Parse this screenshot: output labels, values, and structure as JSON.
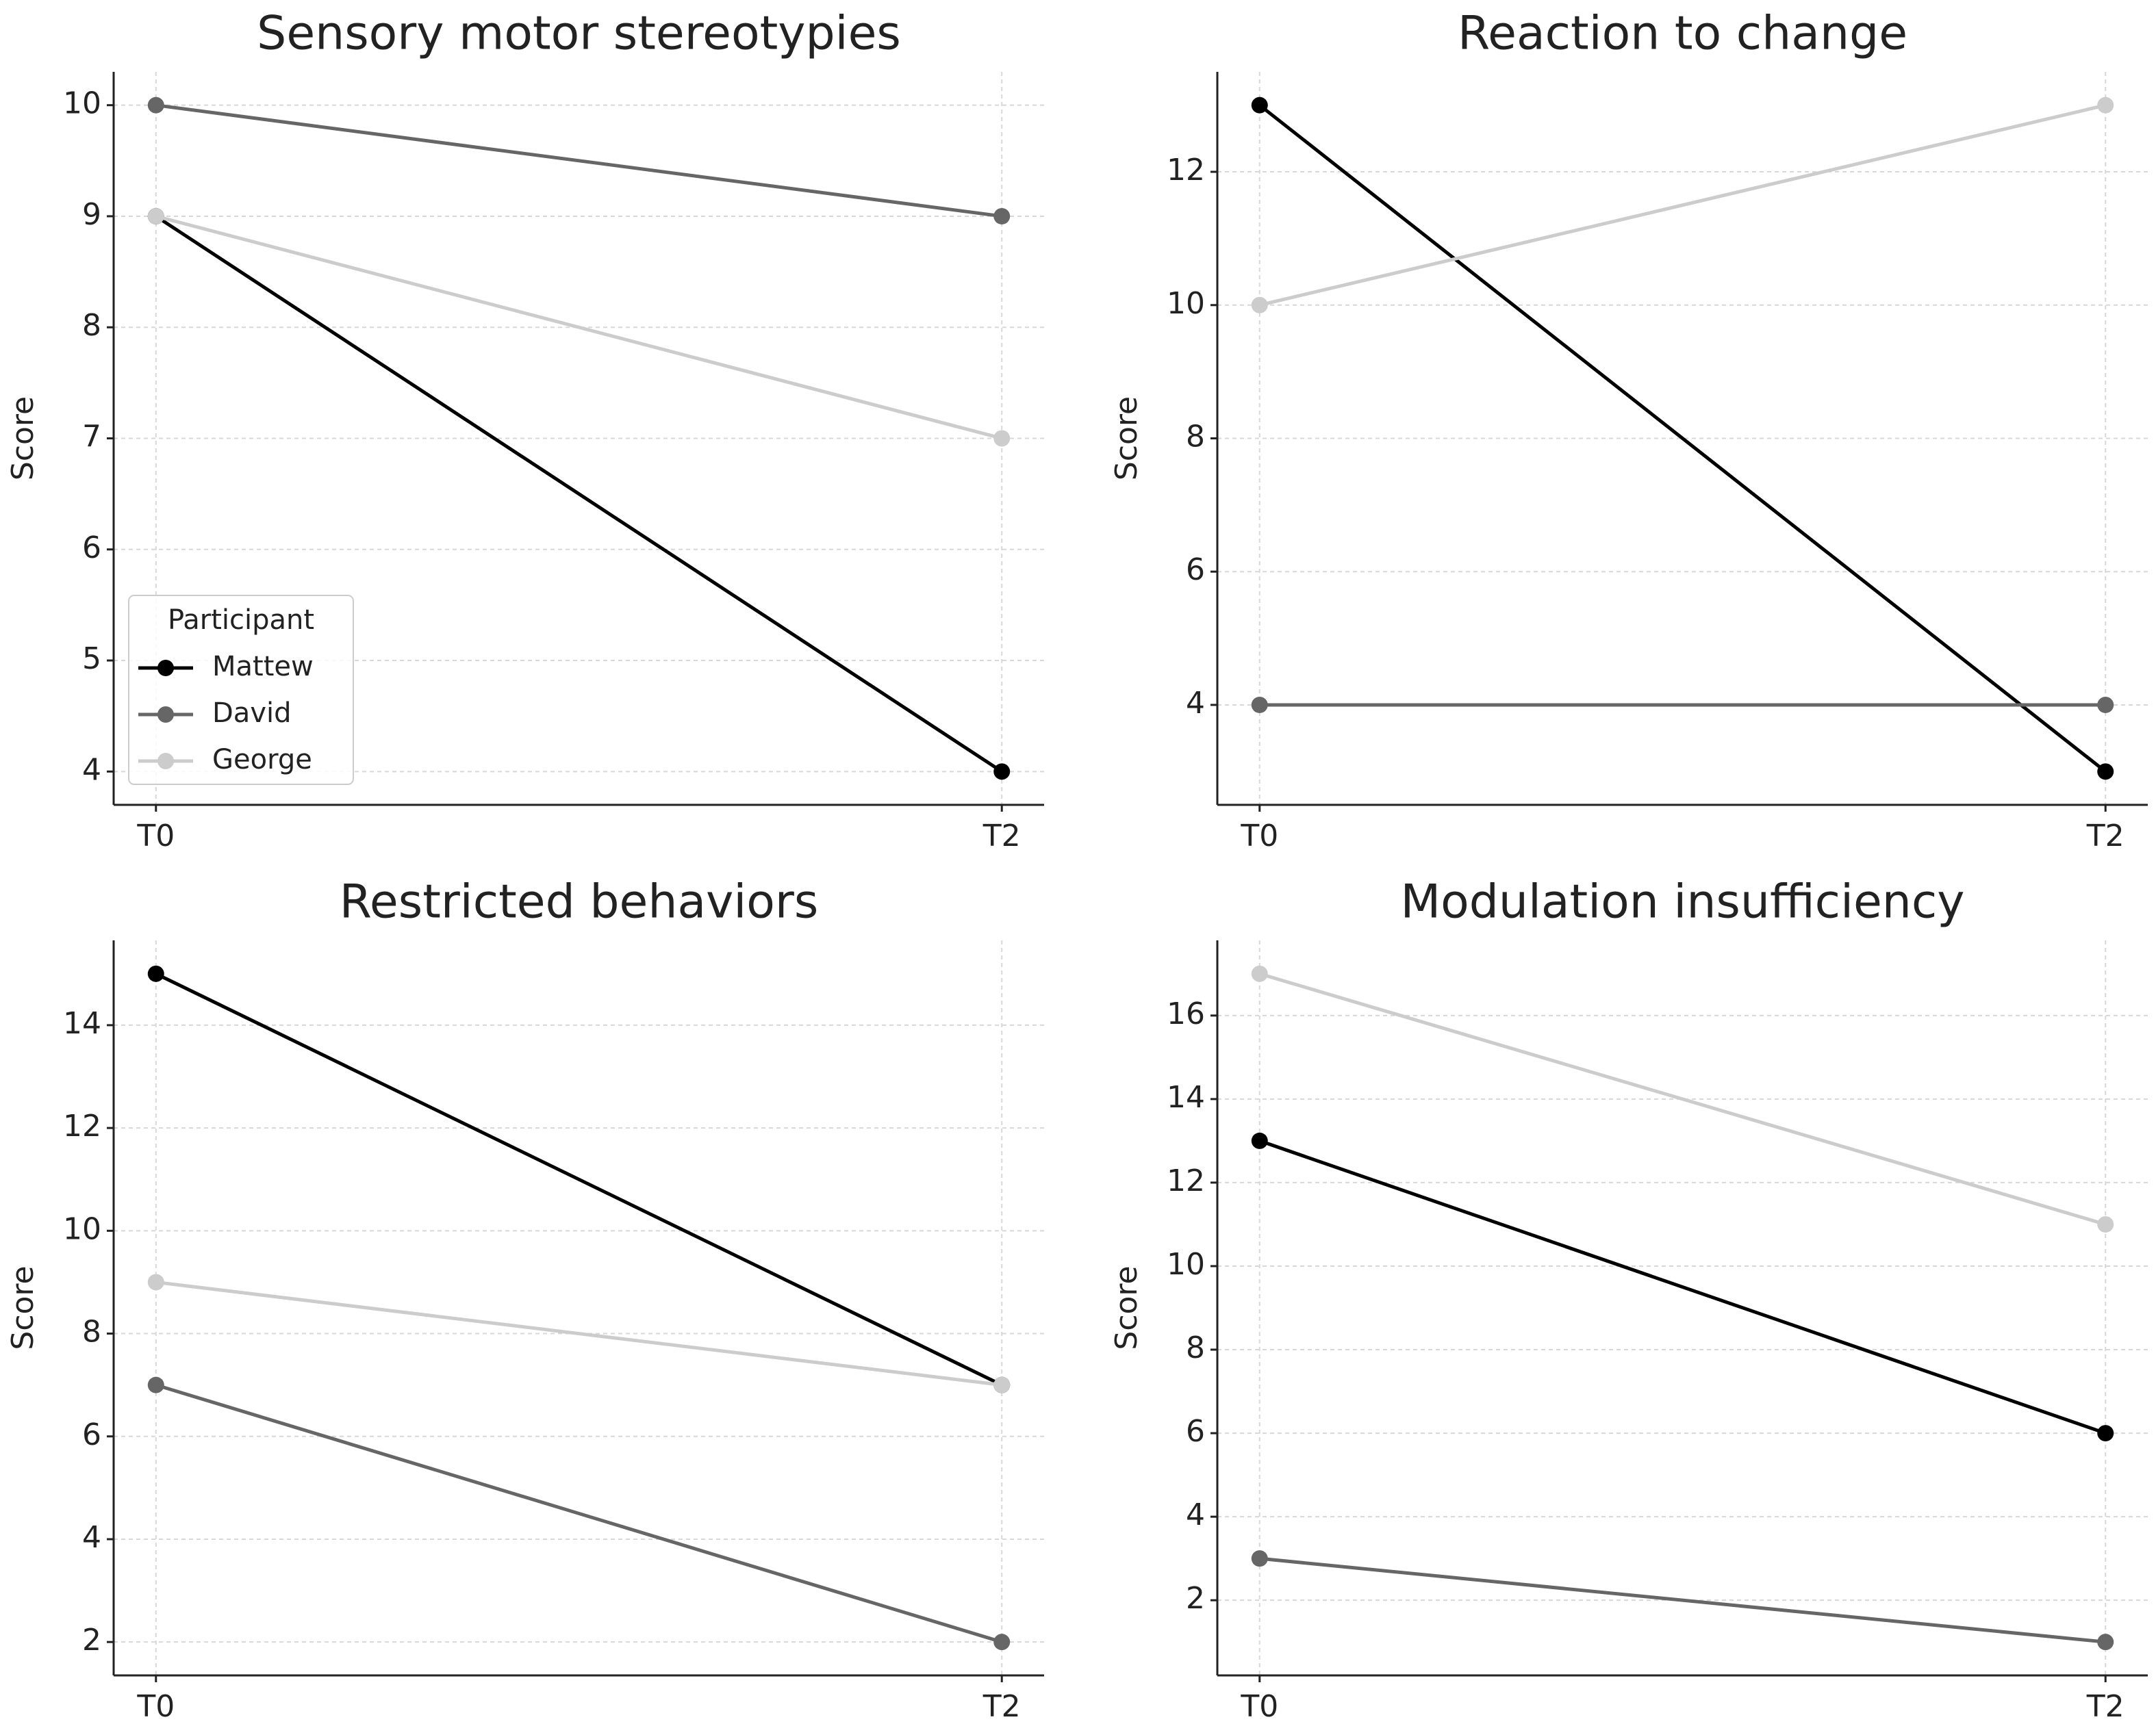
{
  "chart_data": [
    {
      "type": "line",
      "title": "Sensory motor stereotypies",
      "ylabel": "Score",
      "categories": [
        "T0",
        "T2"
      ],
      "series": [
        {
          "name": "Mattew",
          "color": "#000000",
          "values": [
            9,
            4
          ]
        },
        {
          "name": "David",
          "color": "#666666",
          "values": [
            10,
            9
          ]
        },
        {
          "name": "George",
          "color": "#cccccc",
          "values": [
            9,
            7
          ]
        }
      ],
      "ylim": [
        3.7,
        10.3
      ],
      "yticks": [
        4,
        5,
        6,
        7,
        8,
        9,
        10
      ],
      "grid": true,
      "legend": "lower left",
      "legend_title": "Participant"
    },
    {
      "type": "line",
      "title": "Reaction to change",
      "ylabel": "Score",
      "categories": [
        "T0",
        "T2"
      ],
      "series": [
        {
          "name": "Mattew",
          "color": "#000000",
          "values": [
            13,
            3
          ]
        },
        {
          "name": "David",
          "color": "#666666",
          "values": [
            4,
            4
          ]
        },
        {
          "name": "George",
          "color": "#cccccc",
          "values": [
            10,
            13
          ]
        }
      ],
      "ylim": [
        2.5,
        13.5
      ],
      "yticks": [
        4,
        6,
        8,
        10,
        12
      ],
      "grid": true
    },
    {
      "type": "line",
      "title": "Restricted behaviors",
      "ylabel": "Score",
      "categories": [
        "T0",
        "T2"
      ],
      "series": [
        {
          "name": "Mattew",
          "color": "#000000",
          "values": [
            15,
            7
          ]
        },
        {
          "name": "David",
          "color": "#666666",
          "values": [
            7,
            2
          ]
        },
        {
          "name": "George",
          "color": "#cccccc",
          "values": [
            9,
            7
          ]
        }
      ],
      "ylim": [
        1.35,
        15.65
      ],
      "yticks": [
        2,
        4,
        6,
        8,
        10,
        12,
        14
      ],
      "grid": true
    },
    {
      "type": "line",
      "title": "Modulation insufficiency",
      "ylabel": "Score",
      "categories": [
        "T0",
        "T2"
      ],
      "series": [
        {
          "name": "Mattew",
          "color": "#000000",
          "values": [
            13,
            6
          ]
        },
        {
          "name": "David",
          "color": "#666666",
          "values": [
            3,
            1
          ]
        },
        {
          "name": "George",
          "color": "#cccccc",
          "values": [
            17,
            11
          ]
        }
      ],
      "ylim": [
        0.2,
        17.8
      ],
      "yticks": [
        2,
        4,
        6,
        8,
        10,
        12,
        14,
        16
      ],
      "grid": true
    }
  ]
}
